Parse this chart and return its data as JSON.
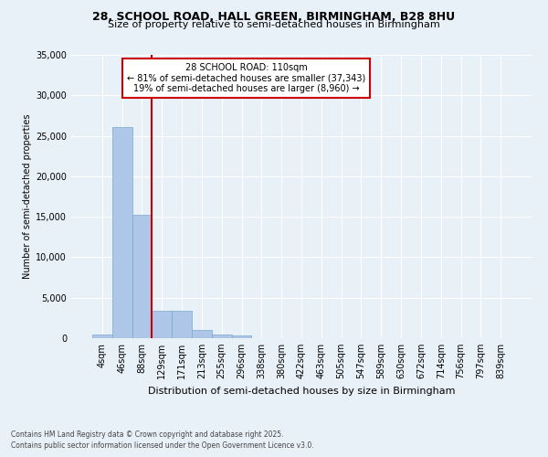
{
  "title_line1": "28, SCHOOL ROAD, HALL GREEN, BIRMINGHAM, B28 8HU",
  "title_line2": "Size of property relative to semi-detached houses in Birmingham",
  "xlabel": "Distribution of semi-detached houses by size in Birmingham",
  "ylabel": "Number of semi-detached properties",
  "categories": [
    "4sqm",
    "46sqm",
    "88sqm",
    "129sqm",
    "171sqm",
    "213sqm",
    "255sqm",
    "296sqm",
    "338sqm",
    "380sqm",
    "422sqm",
    "463sqm",
    "505sqm",
    "547sqm",
    "589sqm",
    "630sqm",
    "672sqm",
    "714sqm",
    "756sqm",
    "797sqm",
    "839sqm"
  ],
  "values": [
    400,
    26100,
    15200,
    3350,
    3350,
    1050,
    500,
    300,
    0,
    0,
    0,
    0,
    0,
    0,
    0,
    0,
    0,
    0,
    0,
    0,
    0
  ],
  "bar_color": "#aec6e8",
  "bar_edge_color": "#7aa8d0",
  "vline_x_index": 2,
  "vline_color": "#cc0000",
  "annotation_title": "28 SCHOOL ROAD: 110sqm",
  "annotation_line2": "← 81% of semi-detached houses are smaller (37,343)",
  "annotation_line3": "19% of semi-detached houses are larger (8,960) →",
  "annotation_box_color": "#ffffff",
  "annotation_box_edge": "#cc0000",
  "ylim": [
    0,
    35000
  ],
  "yticks": [
    0,
    5000,
    10000,
    15000,
    20000,
    25000,
    30000,
    35000
  ],
  "bg_color": "#e8f0f8",
  "plot_bg_color": "#e8f0f8",
  "grid_color": "#ffffff",
  "footer_line1": "Contains HM Land Registry data © Crown copyright and database right 2025.",
  "footer_line2": "Contains public sector information licensed under the Open Government Licence v3.0."
}
